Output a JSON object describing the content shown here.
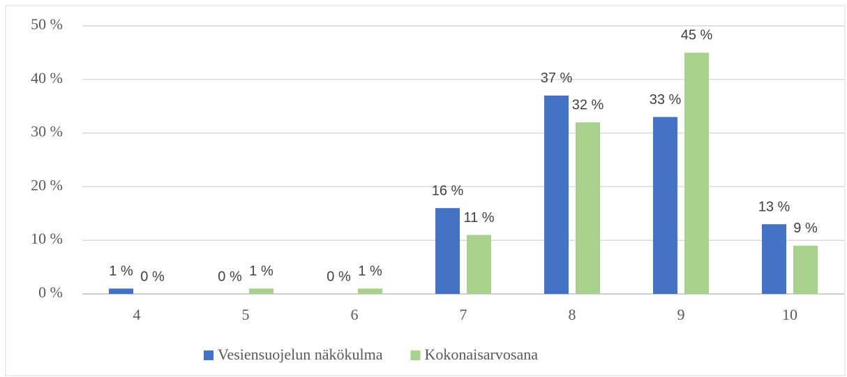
{
  "chart_data": {
    "type": "bar",
    "categories": [
      "4",
      "5",
      "6",
      "7",
      "8",
      "9",
      "10"
    ],
    "series": [
      {
        "name": "Vesiensuojelun näkökulma",
        "color": "#4472c4",
        "values": [
          1,
          0,
          0,
          16,
          37,
          33,
          13
        ],
        "value_labels": [
          "1 %",
          "0 %",
          "0 %",
          "16 %",
          "37 %",
          "33 %",
          "13 %"
        ]
      },
      {
        "name": "Kokonaisarvosana",
        "color": "#a9d18e",
        "values": [
          0,
          1,
          1,
          11,
          32,
          45,
          9
        ],
        "value_labels": [
          "0 %",
          "1 %",
          "1 %",
          "11 %",
          "32 %",
          "45 %",
          "9 %"
        ]
      }
    ],
    "ylim": [
      0,
      50
    ],
    "yticks": [
      {
        "value": 0,
        "label": "0 %"
      },
      {
        "value": 10,
        "label": "10 %"
      },
      {
        "value": 20,
        "label": "20 %"
      },
      {
        "value": 30,
        "label": "30 %"
      },
      {
        "value": 40,
        "label": "40 %"
      },
      {
        "value": 50,
        "label": "50 %"
      }
    ],
    "grid": true,
    "legend": "bottom"
  }
}
